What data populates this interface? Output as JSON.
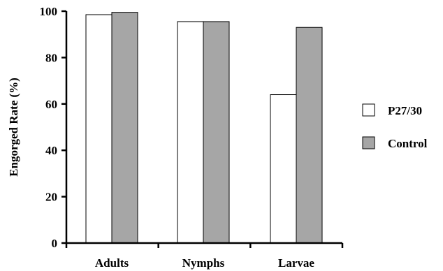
{
  "chart_data": {
    "type": "bar",
    "title": "",
    "xlabel": "",
    "ylabel": "Engorged Rate (%)",
    "categories": [
      "Adults",
      "Nymphs",
      "Larvae"
    ],
    "ylim": [
      0,
      100
    ],
    "yticks": [
      "0",
      "20",
      "40",
      "60",
      "80",
      "100"
    ],
    "grid": false,
    "legend_position": "right",
    "series": [
      {
        "name": "P27/30",
        "values": [
          98.5,
          95.5,
          64
        ],
        "color": "#ffffff"
      },
      {
        "name": "Control",
        "values": [
          99.5,
          95.5,
          93
        ],
        "color": "#a6a6a6"
      }
    ]
  }
}
